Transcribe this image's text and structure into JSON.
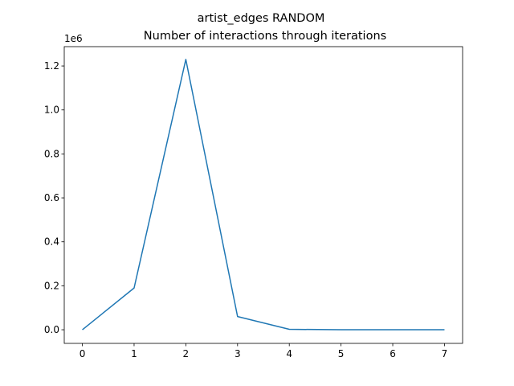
{
  "chart_data": {
    "type": "line",
    "title": "artist_edges RANDOM",
    "subtitle": "Number of interactions through iterations",
    "y_offset_label": "1e6",
    "x": [
      0,
      1,
      2,
      3,
      4,
      5,
      6,
      7
    ],
    "series": [
      {
        "color": "#1f77b4",
        "values": [
          0,
          0.19,
          1.23,
          0.06,
          0.002,
          0,
          0,
          0
        ]
      }
    ],
    "xlim": [
      -0.35,
      7.35
    ],
    "xticks": [
      0,
      1,
      2,
      3,
      4,
      5,
      6,
      7
    ],
    "ylim": [
      -0.062,
      1.288
    ],
    "yticks": [
      {
        "value": 0,
        "label": "0.0"
      },
      0.2,
      0.4,
      0.6,
      0.8,
      {
        "value": 1,
        "label": "1.0"
      },
      1.2
    ]
  }
}
